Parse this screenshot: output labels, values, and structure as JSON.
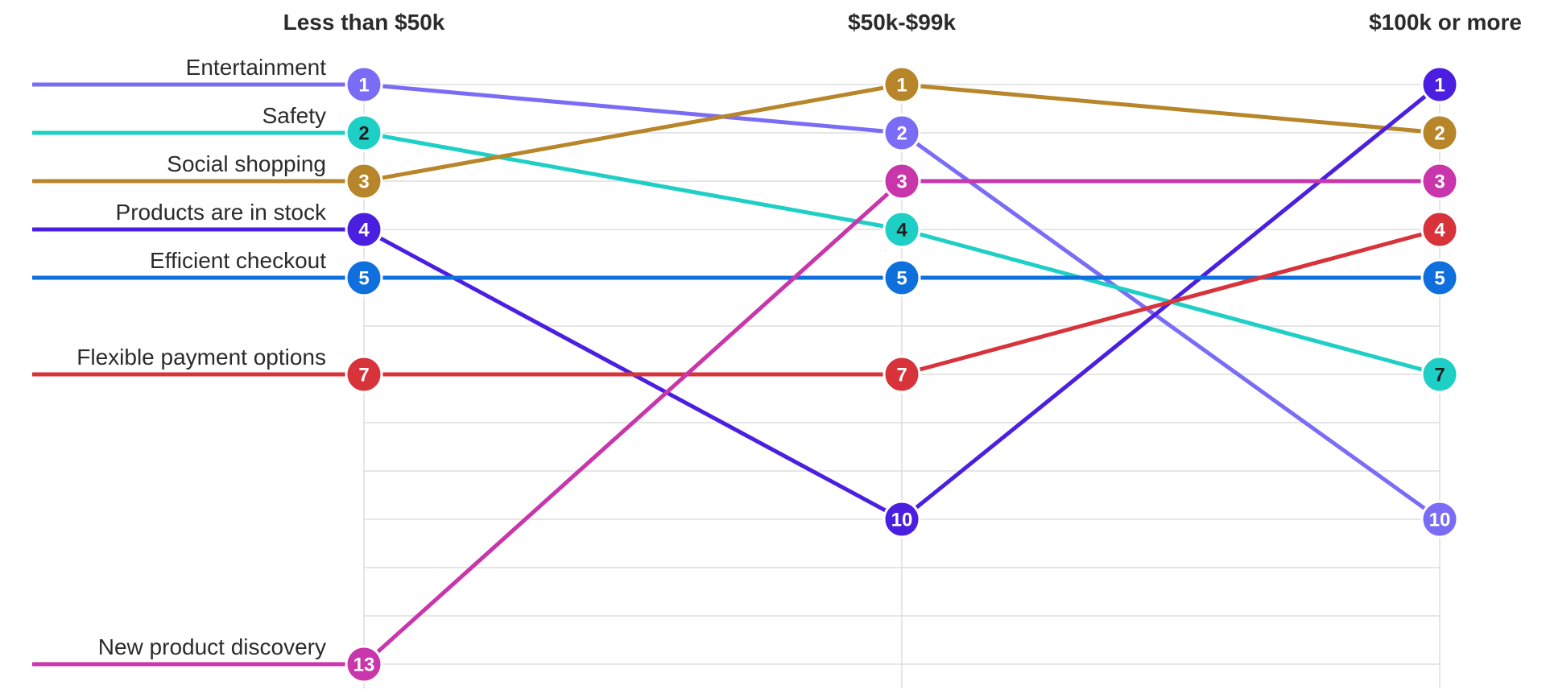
{
  "chart_data": {
    "type": "line",
    "title": "",
    "xlabel": "",
    "ylabel": "",
    "categories": [
      "Less than $50k",
      "$50k-$99k",
      "$100k or more"
    ],
    "y_scale": "rank (1 at top, inverted)",
    "ylim": [
      1,
      13
    ],
    "grid": true,
    "legend": "inline labels at left",
    "series": [
      {
        "name": "Entertainment",
        "color": "#7b6cf6",
        "label_color": "#ffffff",
        "values": [
          1,
          2,
          10
        ]
      },
      {
        "name": "Safety",
        "color": "#1ecfc6",
        "label_color": "#1f1f1f",
        "values": [
          2,
          4,
          7
        ]
      },
      {
        "name": "Social shopping",
        "color": "#b8862a",
        "label_color": "#ffffff",
        "values": [
          3,
          1,
          2
        ]
      },
      {
        "name": "Products are in stock",
        "color": "#4b1fe0",
        "label_color": "#ffffff",
        "values": [
          4,
          10,
          1
        ]
      },
      {
        "name": "Efficient checkout",
        "color": "#0f6fdc",
        "label_color": "#ffffff",
        "values": [
          5,
          5,
          5
        ]
      },
      {
        "name": "Flexible payment options",
        "color": "#d8323a",
        "label_color": "#ffffff",
        "values": [
          7,
          7,
          4
        ]
      },
      {
        "name": "New product discovery",
        "color": "#c935aa",
        "label_color": "#ffffff",
        "values": [
          13,
          3,
          3
        ]
      }
    ]
  }
}
